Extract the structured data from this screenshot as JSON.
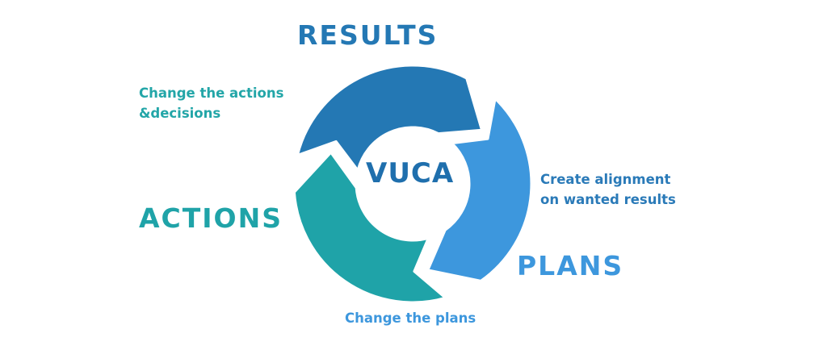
{
  "diagram": {
    "center": {
      "text": "VUCA",
      "color": "#1f6fad"
    },
    "stages": [
      {
        "id": "results",
        "label": "RESULTS",
        "color": "#2478b4"
      },
      {
        "id": "plans",
        "label": "PLANS",
        "color": "#3d97dd"
      },
      {
        "id": "actions",
        "label": "ACTIONS",
        "color": "#1fa3a8"
      }
    ],
    "transitions": [
      {
        "from": "actions",
        "to": "results",
        "text": [
          "Change the actions",
          "&decisions"
        ],
        "color": "#23a6a8"
      },
      {
        "from": "results",
        "to": "plans",
        "text": [
          "Create alignment",
          "on wanted results"
        ],
        "color": "#2a7ab8"
      },
      {
        "from": "plans",
        "to": "actions",
        "text": [
          "Change the plans"
        ],
        "color": "#3d97dd"
      }
    ]
  }
}
